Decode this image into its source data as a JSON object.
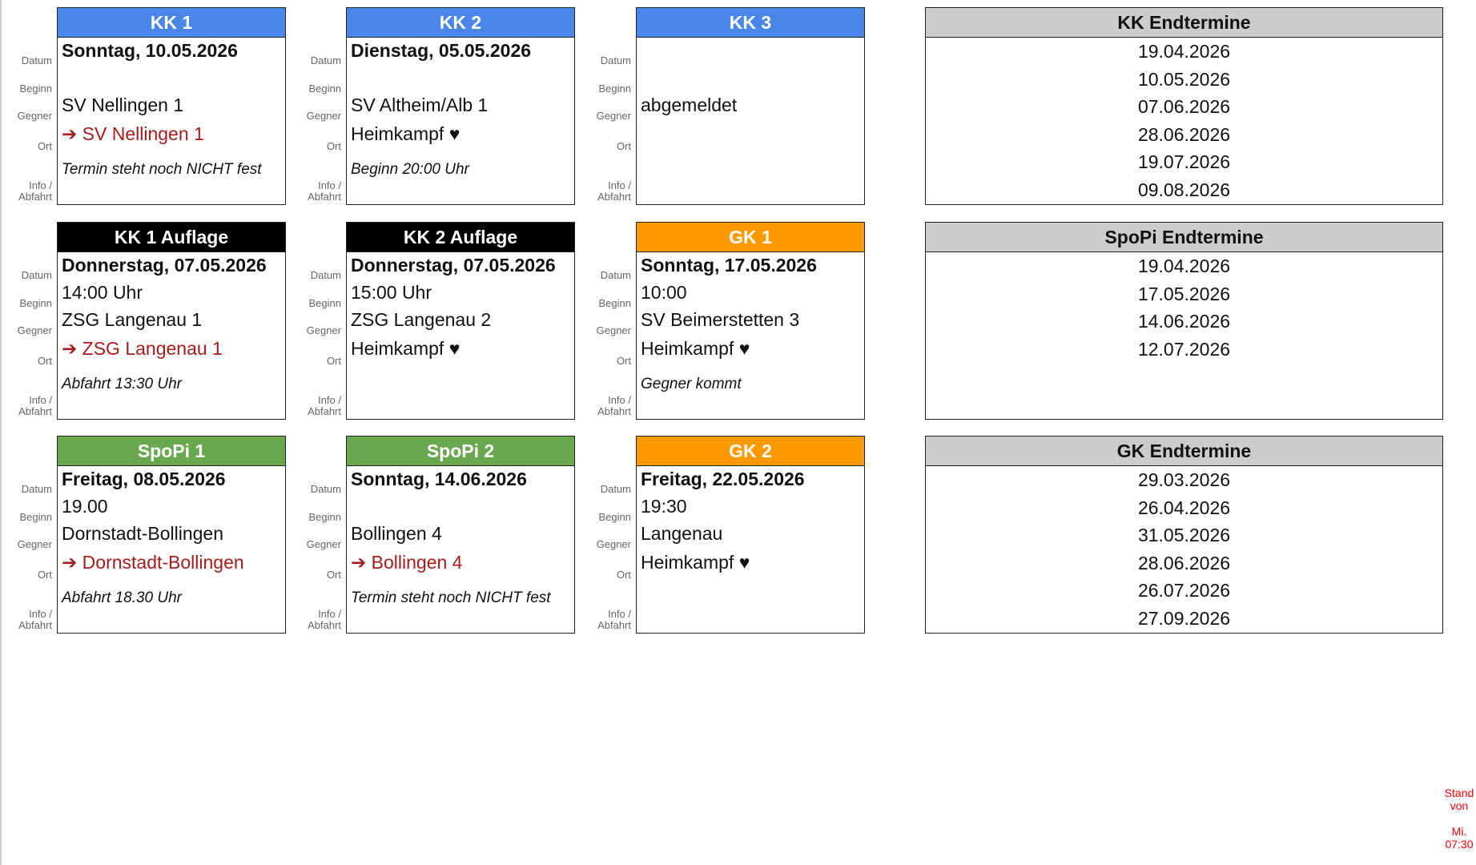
{
  "labels": {
    "datum": "Datum",
    "beginn": "Beginn",
    "gegner": "Gegner",
    "ort": "Ort",
    "info1": "Info /",
    "info2": "Abfahrt"
  },
  "cards": [
    {
      "title": "KK 1",
      "color": "#4a86e8",
      "datum": "Sonntag, 10.05.2026",
      "beginn": "",
      "gegner": "SV Nellingen 1",
      "ort": "➔ SV Nellingen 1",
      "ort_away": true,
      "info": "Termin steht noch NICHT fest"
    },
    {
      "title": "KK 2",
      "color": "#4a86e8",
      "datum": "Dienstag, 05.05.2026",
      "beginn": "",
      "gegner": "SV Altheim/Alb 1",
      "ort": "Heimkampf ♥",
      "ort_away": false,
      "info": "Beginn 20:00 Uhr"
    },
    {
      "title": "KK 3",
      "color": "#4a86e8",
      "datum": "",
      "beginn": "",
      "gegner": "abgemeldet",
      "ort": "",
      "ort_away": false,
      "info": ""
    },
    {
      "title": "KK 1 Auflage",
      "color": "#000000",
      "datum": "Donnerstag, 07.05.2026",
      "beginn": "14:00 Uhr",
      "gegner": "ZSG Langenau 1",
      "ort": "➔ ZSG Langenau 1",
      "ort_away": true,
      "info": "Abfahrt 13:30 Uhr"
    },
    {
      "title": "KK 2 Auflage",
      "color": "#000000",
      "datum": "Donnerstag, 07.05.2026",
      "beginn": "15:00 Uhr",
      "gegner": "ZSG Langenau 2",
      "ort": "Heimkampf ♥",
      "ort_away": false,
      "info": ""
    },
    {
      "title": "GK 1",
      "color": "#ff9900",
      "datum": "Sonntag, 17.05.2026",
      "beginn": "10:00",
      "gegner": "SV Beimerstetten 3",
      "ort": "Heimkampf ♥",
      "ort_away": false,
      "info": "Gegner kommt"
    },
    {
      "title": "SpoPi 1",
      "color": "#6aa84f",
      "datum": "Freitag, 08.05.2026",
      "beginn": "19.00",
      "gegner": "Dornstadt-Bollingen",
      "ort": "➔ Dornstadt-Bollingen",
      "ort_away": true,
      "info": "Abfahrt 18.30 Uhr"
    },
    {
      "title": "SpoPi 2",
      "color": "#6aa84f",
      "datum": "Sonntag, 14.06.2026",
      "beginn": "",
      "gegner": "Bollingen 4",
      "ort": "➔ Bollingen 4",
      "ort_away": true,
      "info": "Termin steht noch NICHT fest"
    },
    {
      "title": "GK 2",
      "color": "#ff9900",
      "datum": "Freitag, 22.05.2026",
      "beginn": "19:30",
      "gegner": "Langenau",
      "ort": "Heimkampf ♥",
      "ort_away": false,
      "info": ""
    }
  ],
  "endtermine": [
    {
      "title": "KK Endtermine",
      "dates": [
        "19.04.2026",
        "10.05.2026",
        "07.06.2026",
        "28.06.2026",
        "19.07.2026",
        "09.08.2026"
      ]
    },
    {
      "title": "SpoPi Endtermine",
      "dates": [
        "19.04.2026",
        "17.05.2026",
        "14.06.2026",
        "12.07.2026"
      ]
    },
    {
      "title": "GK Endtermine",
      "dates": [
        "29.03.2026",
        "26.04.2026",
        "31.05.2026",
        "28.06.2026",
        "26.07.2026",
        "27.09.2026"
      ]
    }
  ],
  "stand": {
    "line1": "Stand",
    "line2": "von",
    "line3": "Mi.",
    "line4": "07:30"
  }
}
